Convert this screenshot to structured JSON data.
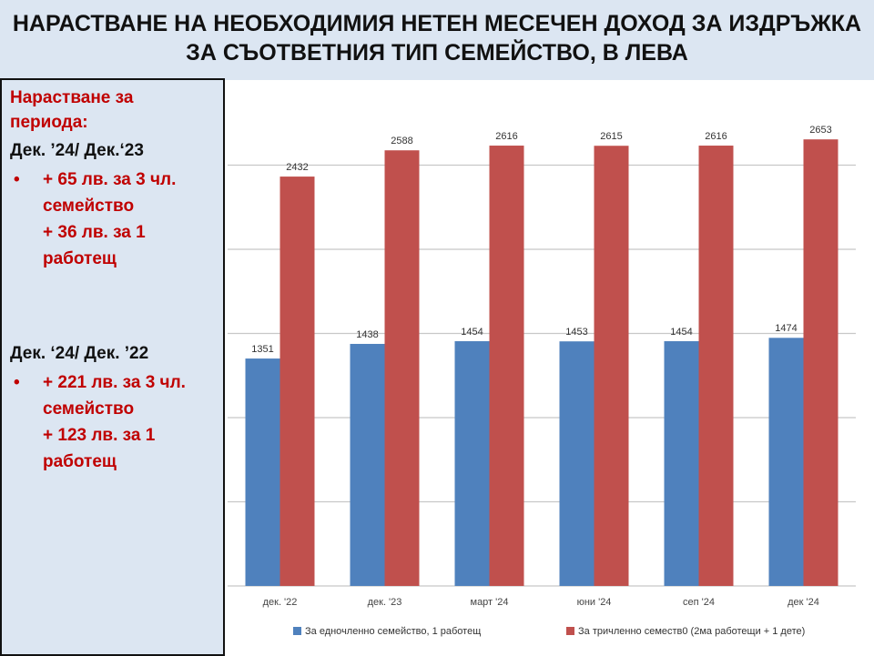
{
  "slide": {
    "title": "НАРАСТВАНЕ НА НЕОБХОДИМИЯ НЕТЕН МЕСЕЧЕН ДОХОД ЗА ИЗДРЪЖКА ЗА СЪОТВЕТНИЯ ТИП СЕМЕЙСТВО, В ЛЕВА",
    "panel": {
      "heading": "Нарастване за периода:",
      "sections": [
        {
          "period": "Дек. ’24/ Дек.‘23",
          "lines": [
            "+ 65 лв. за 3 чл. семейство",
            "+ 36 лв.  за  1 работещ"
          ]
        },
        {
          "period": "Дек. ‘24/ Дек. ’22",
          "lines": [
            "+ 221 лв. за 3 чл. семейство",
            "+ 123 лв.  за 1 работещ"
          ]
        }
      ]
    }
  },
  "chart_data": {
    "type": "bar",
    "categories": [
      "дек. '22",
      "дек. '23",
      "март '24",
      "юни '24",
      "сеп '24",
      "дек '24"
    ],
    "series": [
      {
        "name": "За едночленно семейство, 1 работещ",
        "color": "#4f81bd",
        "values": [
          1351,
          1438,
          1454,
          1453,
          1454,
          1474
        ]
      },
      {
        "name": "За тричленно семеств0 (2ма работещи + 1 дете)",
        "color": "#c0504d",
        "values": [
          2432,
          2588,
          2616,
          2615,
          2616,
          2653
        ]
      }
    ],
    "ylim": [
      0,
      3000
    ],
    "yticks": [
      0,
      500,
      1000,
      1500,
      2000,
      2500
    ],
    "grid": true,
    "legend": "bottom"
  }
}
